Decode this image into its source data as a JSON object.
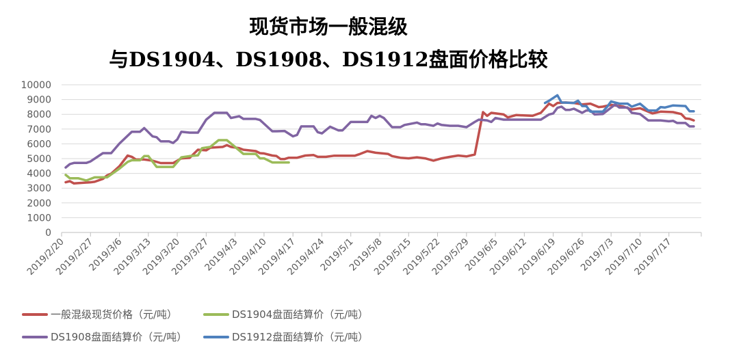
{
  "chart_data": {
    "type": "line",
    "title": [
      "现货市场一般混级",
      "与DS1904、DS1908、DS1912盘面价格比较"
    ],
    "xlabel": "",
    "ylabel": "",
    "x_range": [
      "2019/2/20",
      "2019/7/24"
    ],
    "ylim": [
      0,
      10000
    ],
    "yticks": [
      "0",
      "1000",
      "2000",
      "3000",
      "4000",
      "5000",
      "6000",
      "7000",
      "8000",
      "9000",
      "10000"
    ],
    "xticks": [
      "2019/2/20",
      "2019/2/27",
      "2019/3/6",
      "2019/3/13",
      "2019/3/20",
      "2019/3/27",
      "2019/4/3",
      "2019/4/10",
      "2019/4/17",
      "2019/4/24",
      "2019/5/1",
      "2019/5/8",
      "2019/5/15",
      "2019/5/22",
      "2019/5/29",
      "2019/6/5",
      "2019/6/12",
      "2019/6/19",
      "2019/6/26",
      "2019/7/3",
      "2019/7/10",
      "2019/7/17"
    ],
    "grid": "horizontal",
    "legend_position": "bottom",
    "series": [
      {
        "name": "一般混级现货价格（元/吨）",
        "color": "#C0504D",
        "points": [
          [
            "2019/2/21",
            3400
          ],
          [
            "2019/2/22",
            3470
          ],
          [
            "2019/2/23",
            3320
          ],
          [
            "2019/2/27",
            3400
          ],
          [
            "2019/2/28",
            3430
          ],
          [
            "2019/3/2",
            3630
          ],
          [
            "2019/3/3",
            3860
          ],
          [
            "2019/3/4",
            3980
          ],
          [
            "2019/3/6",
            4480
          ],
          [
            "2019/3/8",
            5210
          ],
          [
            "2019/3/9",
            5120
          ],
          [
            "2019/3/10",
            4940
          ],
          [
            "2019/3/12",
            4940
          ],
          [
            "2019/3/14",
            4860
          ],
          [
            "2019/3/16",
            4700
          ],
          [
            "2019/3/19",
            4700
          ],
          [
            "2019/3/21",
            5020
          ],
          [
            "2019/3/23",
            5050
          ],
          [
            "2019/3/25",
            5600
          ],
          [
            "2019/3/27",
            5560
          ],
          [
            "2019/3/28",
            5740
          ],
          [
            "2019/3/31",
            5790
          ],
          [
            "2019/4/1",
            5910
          ],
          [
            "2019/4/2",
            5790
          ],
          [
            "2019/4/4",
            5710
          ],
          [
            "2019/4/5",
            5600
          ],
          [
            "2019/4/8",
            5510
          ],
          [
            "2019/4/9",
            5370
          ],
          [
            "2019/4/10",
            5350
          ],
          [
            "2019/4/12",
            5210
          ],
          [
            "2019/4/13",
            5180
          ],
          [
            "2019/4/14",
            4970
          ],
          [
            "2019/4/15",
            4970
          ],
          [
            "2019/4/16",
            5060
          ],
          [
            "2019/4/18",
            5060
          ],
          [
            "2019/4/20",
            5210
          ],
          [
            "2019/4/22",
            5240
          ],
          [
            "2019/4/23",
            5120
          ],
          [
            "2019/4/25",
            5120
          ],
          [
            "2019/4/27",
            5200
          ],
          [
            "2019/5/2",
            5200
          ],
          [
            "2019/5/3",
            5290
          ],
          [
            "2019/5/5",
            5510
          ],
          [
            "2019/5/7",
            5400
          ],
          [
            "2019/5/10",
            5320
          ],
          [
            "2019/5/11",
            5170
          ],
          [
            "2019/5/13",
            5060
          ],
          [
            "2019/5/15",
            5020
          ],
          [
            "2019/5/17",
            5090
          ],
          [
            "2019/5/19",
            5020
          ],
          [
            "2019/5/21",
            4860
          ],
          [
            "2019/5/23",
            5020
          ],
          [
            "2019/5/25",
            5120
          ],
          [
            "2019/5/27",
            5210
          ],
          [
            "2019/5/29",
            5150
          ],
          [
            "2019/5/31",
            5280
          ],
          [
            "2019/6/2",
            8150
          ],
          [
            "2019/6/3",
            7900
          ],
          [
            "2019/6/4",
            8100
          ],
          [
            "2019/6/7",
            7990
          ],
          [
            "2019/6/8",
            7790
          ],
          [
            "2019/6/10",
            7950
          ],
          [
            "2019/6/14",
            7900
          ],
          [
            "2019/6/16",
            8100
          ],
          [
            "2019/6/18",
            8720
          ],
          [
            "2019/6/19",
            8560
          ],
          [
            "2019/6/20",
            8770
          ],
          [
            "2019/6/22",
            8800
          ],
          [
            "2019/6/24",
            8770
          ],
          [
            "2019/6/26",
            8670
          ],
          [
            "2019/6/28",
            8720
          ],
          [
            "2019/6/30",
            8490
          ],
          [
            "2019/7/1",
            8520
          ],
          [
            "2019/7/3",
            8640
          ],
          [
            "2019/7/6",
            8520
          ],
          [
            "2019/7/8",
            8330
          ],
          [
            "2019/7/10",
            8410
          ],
          [
            "2019/7/13",
            8060
          ],
          [
            "2019/7/15",
            8180
          ],
          [
            "2019/7/18",
            8150
          ],
          [
            "2019/7/20",
            8020
          ],
          [
            "2019/7/21",
            7720
          ],
          [
            "2019/7/22",
            7690
          ],
          [
            "2019/7/23",
            7590
          ]
        ]
      },
      {
        "name": "DS1904盘面结算价（元/吨）",
        "color": "#9BBB59",
        "points": [
          [
            "2019/2/21",
            3900
          ],
          [
            "2019/2/22",
            3670
          ],
          [
            "2019/2/24",
            3670
          ],
          [
            "2019/2/26",
            3520
          ],
          [
            "2019/2/28",
            3730
          ],
          [
            "2019/3/3",
            3730
          ],
          [
            "2019/3/6",
            4320
          ],
          [
            "2019/3/8",
            4780
          ],
          [
            "2019/3/9",
            4890
          ],
          [
            "2019/3/11",
            4890
          ],
          [
            "2019/3/12",
            5170
          ],
          [
            "2019/3/13",
            5170
          ],
          [
            "2019/3/15",
            4440
          ],
          [
            "2019/3/19",
            4440
          ],
          [
            "2019/3/21",
            5090
          ],
          [
            "2019/3/23",
            5170
          ],
          [
            "2019/3/25",
            5220
          ],
          [
            "2019/3/26",
            5710
          ],
          [
            "2019/3/28",
            5790
          ],
          [
            "2019/3/30",
            6250
          ],
          [
            "2019/4/1",
            6250
          ],
          [
            "2019/4/3",
            5790
          ],
          [
            "2019/4/5",
            5320
          ],
          [
            "2019/4/8",
            5320
          ],
          [
            "2019/4/9",
            5020
          ],
          [
            "2019/4/10",
            5020
          ],
          [
            "2019/4/12",
            4740
          ],
          [
            "2019/4/16",
            4740
          ]
        ]
      },
      {
        "name": "DS1908盘面结算价（元/吨）",
        "color": "#8064A2",
        "points": [
          [
            "2019/2/21",
            4400
          ],
          [
            "2019/2/22",
            4630
          ],
          [
            "2019/2/23",
            4710
          ],
          [
            "2019/2/26",
            4710
          ],
          [
            "2019/2/27",
            4810
          ],
          [
            "2019/3/2",
            5370
          ],
          [
            "2019/3/4",
            5370
          ],
          [
            "2019/3/6",
            6020
          ],
          [
            "2019/3/9",
            6820
          ],
          [
            "2019/3/11",
            6820
          ],
          [
            "2019/3/12",
            7070
          ],
          [
            "2019/3/14",
            6510
          ],
          [
            "2019/3/15",
            6450
          ],
          [
            "2019/3/16",
            6170
          ],
          [
            "2019/3/18",
            6170
          ],
          [
            "2019/3/19",
            6060
          ],
          [
            "2019/3/20",
            6300
          ],
          [
            "2019/3/21",
            6820
          ],
          [
            "2019/3/23",
            6760
          ],
          [
            "2019/3/25",
            6760
          ],
          [
            "2019/3/27",
            7640
          ],
          [
            "2019/3/29",
            8100
          ],
          [
            "2019/4/1",
            8100
          ],
          [
            "2019/4/2",
            7750
          ],
          [
            "2019/4/4",
            7870
          ],
          [
            "2019/4/5",
            7690
          ],
          [
            "2019/4/8",
            7690
          ],
          [
            "2019/4/9",
            7620
          ],
          [
            "2019/4/12",
            6850
          ],
          [
            "2019/4/13",
            6850
          ],
          [
            "2019/4/15",
            6870
          ],
          [
            "2019/4/17",
            6510
          ],
          [
            "2019/4/18",
            6600
          ],
          [
            "2019/4/19",
            7180
          ],
          [
            "2019/4/22",
            7180
          ],
          [
            "2019/4/23",
            6790
          ],
          [
            "2019/4/24",
            6710
          ],
          [
            "2019/4/26",
            7160
          ],
          [
            "2019/4/28",
            6910
          ],
          [
            "2019/4/29",
            6910
          ],
          [
            "2019/5/1",
            7480
          ],
          [
            "2019/5/5",
            7480
          ],
          [
            "2019/5/6",
            7900
          ],
          [
            "2019/5/7",
            7750
          ],
          [
            "2019/5/8",
            7900
          ],
          [
            "2019/5/9",
            7750
          ],
          [
            "2019/5/11",
            7130
          ],
          [
            "2019/5/13",
            7130
          ],
          [
            "2019/5/14",
            7280
          ],
          [
            "2019/5/17",
            7440
          ],
          [
            "2019/5/18",
            7330
          ],
          [
            "2019/5/19",
            7330
          ],
          [
            "2019/5/21",
            7220
          ],
          [
            "2019/5/22",
            7380
          ],
          [
            "2019/5/23",
            7280
          ],
          [
            "2019/5/25",
            7220
          ],
          [
            "2019/5/27",
            7220
          ],
          [
            "2019/5/29",
            7130
          ],
          [
            "2019/5/31",
            7480
          ],
          [
            "2019/6/1",
            7640
          ],
          [
            "2019/6/3",
            7590
          ],
          [
            "2019/6/4",
            7480
          ],
          [
            "2019/6/5",
            7750
          ],
          [
            "2019/6/7",
            7640
          ],
          [
            "2019/6/10",
            7640
          ],
          [
            "2019/6/14",
            7640
          ],
          [
            "2019/6/16",
            7640
          ],
          [
            "2019/6/18",
            7990
          ],
          [
            "2019/6/19",
            8060
          ],
          [
            "2019/6/20",
            8440
          ],
          [
            "2019/6/21",
            8520
          ],
          [
            "2019/6/22",
            8300
          ],
          [
            "2019/6/23",
            8300
          ],
          [
            "2019/6/24",
            8380
          ],
          [
            "2019/6/26",
            8100
          ],
          [
            "2019/6/27",
            8260
          ],
          [
            "2019/6/28",
            8260
          ],
          [
            "2019/6/29",
            7990
          ],
          [
            "2019/7/1",
            8020
          ],
          [
            "2019/7/4",
            8670
          ],
          [
            "2019/7/5",
            8460
          ],
          [
            "2019/7/7",
            8460
          ],
          [
            "2019/7/8",
            8100
          ],
          [
            "2019/7/10",
            8020
          ],
          [
            "2019/7/12",
            7590
          ],
          [
            "2019/7/15",
            7590
          ],
          [
            "2019/7/17",
            7530
          ],
          [
            "2019/7/18",
            7560
          ],
          [
            "2019/7/19",
            7410
          ],
          [
            "2019/7/21",
            7410
          ],
          [
            "2019/7/22",
            7180
          ],
          [
            "2019/7/23",
            7180
          ]
        ]
      },
      {
        "name": "DS1912盘面结算价（元/吨）",
        "color": "#4F81BD",
        "points": [
          [
            "2019/6/17",
            8770
          ],
          [
            "2019/6/18",
            8920
          ],
          [
            "2019/6/20",
            9290
          ],
          [
            "2019/6/21",
            8800
          ],
          [
            "2019/6/24",
            8770
          ],
          [
            "2019/6/25",
            8920
          ],
          [
            "2019/6/26",
            8560
          ],
          [
            "2019/6/27",
            8560
          ],
          [
            "2019/6/28",
            8180
          ],
          [
            "2019/7/1",
            8180
          ],
          [
            "2019/7/2",
            8490
          ],
          [
            "2019/7/3",
            8870
          ],
          [
            "2019/7/5",
            8720
          ],
          [
            "2019/7/7",
            8720
          ],
          [
            "2019/7/8",
            8520
          ],
          [
            "2019/7/10",
            8720
          ],
          [
            "2019/7/11",
            8490
          ],
          [
            "2019/7/12",
            8260
          ],
          [
            "2019/7/14",
            8260
          ],
          [
            "2019/7/15",
            8490
          ],
          [
            "2019/7/16",
            8460
          ],
          [
            "2019/7/18",
            8600
          ],
          [
            "2019/7/21",
            8560
          ],
          [
            "2019/7/22",
            8210
          ],
          [
            "2019/7/23",
            8210
          ]
        ]
      }
    ]
  }
}
